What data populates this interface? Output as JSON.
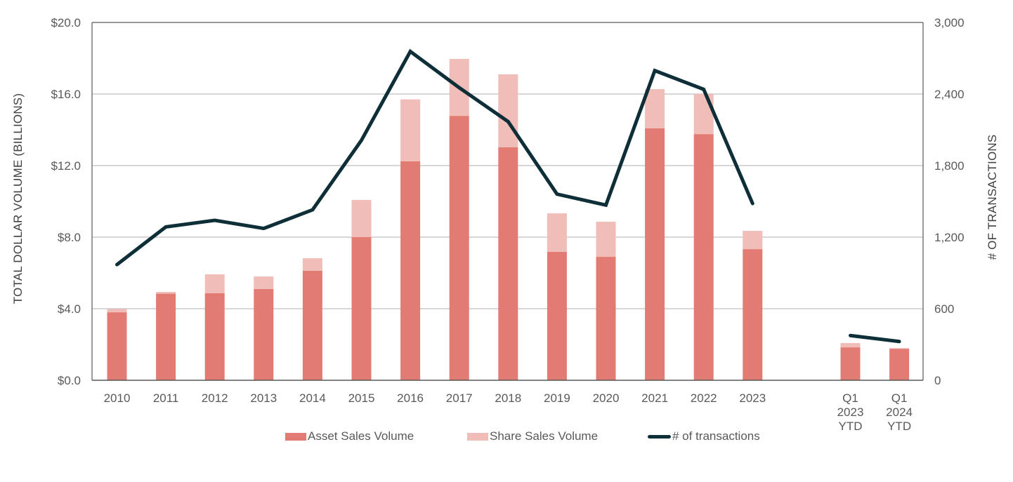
{
  "chart_data": {
    "type": "bar",
    "subtype": "stacked-bar-with-line-secondary-axis",
    "title": "",
    "categories": [
      "2010",
      "2011",
      "2012",
      "2013",
      "2014",
      "2015",
      "2016",
      "2017",
      "2018",
      "2019",
      "2020",
      "2021",
      "2022",
      "2023",
      "",
      "Q1 2023 YTD",
      "Q1 2024 YTD"
    ],
    "category_labels": [
      [
        "2010"
      ],
      [
        "2011"
      ],
      [
        "2012"
      ],
      [
        "2013"
      ],
      [
        "2014"
      ],
      [
        "2015"
      ],
      [
        "2016"
      ],
      [
        "2017"
      ],
      [
        "2018"
      ],
      [
        "2019"
      ],
      [
        "2020"
      ],
      [
        "2021"
      ],
      [
        "2022"
      ],
      [
        "2023"
      ],
      [],
      [
        "Q1",
        "2023",
        "YTD"
      ],
      [
        "Q1",
        "2024",
        "YTD"
      ]
    ],
    "series": [
      {
        "name": "Asset Sales Volume",
        "axis": "left",
        "kind": "bar-stack",
        "color": "#E27B73",
        "values": [
          3.8,
          4.84,
          4.87,
          5.1,
          6.12,
          8.0,
          12.24,
          14.78,
          13.02,
          7.18,
          6.9,
          14.08,
          13.76,
          7.33,
          null,
          1.84,
          1.76
        ]
      },
      {
        "name": "Share Sales Volume",
        "axis": "left",
        "kind": "bar-stack",
        "color": "#F0BDB8",
        "values": [
          0.19,
          0.1,
          1.05,
          0.7,
          0.7,
          2.08,
          3.46,
          3.18,
          4.08,
          2.15,
          1.96,
          2.19,
          2.24,
          1.02,
          null,
          0.24,
          0.04
        ]
      },
      {
        "name": "# of transactions",
        "axis": "right",
        "kind": "line",
        "color": "#0E2E38",
        "values": [
          970,
          1286,
          1341,
          1273,
          1429,
          2012,
          2757,
          2453,
          2169,
          1561,
          1469,
          2596,
          2439,
          1482,
          null,
          375,
          325
        ]
      }
    ],
    "xlabel": "",
    "ylabel": "TOTAL DOLLAR VOLUME (BILLIONS)",
    "y2label": "# OF TRANSACTIONS",
    "ylim": [
      0,
      20
    ],
    "y2lim": [
      0,
      3000
    ],
    "yticks": [
      "$0.0",
      "$4.0",
      "$8.0",
      "$12.0",
      "$16.0",
      "$20.0"
    ],
    "y2ticks": [
      "0",
      "600",
      "1,200",
      "1,800",
      "2,400",
      "3,000"
    ],
    "ytick_values": [
      0,
      4,
      8,
      12,
      16,
      20
    ],
    "y2tick_values": [
      0,
      600,
      1200,
      1800,
      2400,
      3000
    ],
    "grid": true,
    "legend_position": "bottom"
  },
  "legend": {
    "asset_label": "Asset Sales Volume",
    "share_label": "Share Sales Volume",
    "line_label": "# of transactions"
  }
}
